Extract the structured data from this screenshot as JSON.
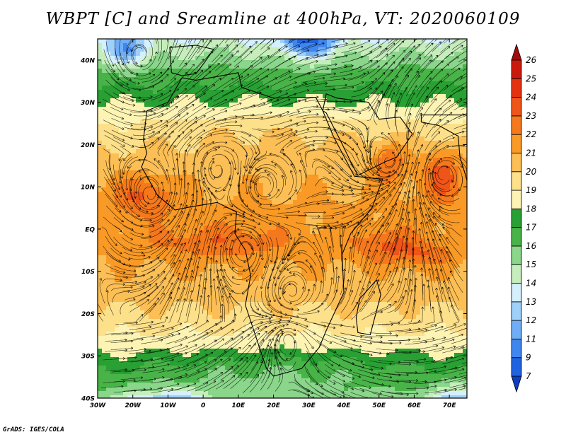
{
  "title": "WBPT [C] and Sreamline at 400hPa, VT: 2020060109",
  "credit": "GrADS: IGES/COLA",
  "map": {
    "lon_range": [
      -30,
      75
    ],
    "lat_range": [
      -40,
      45
    ],
    "x_ticks": [
      {
        "lon": -30,
        "label": "30W"
      },
      {
        "lon": -20,
        "label": "20W"
      },
      {
        "lon": -10,
        "label": "10W"
      },
      {
        "lon": 0,
        "label": "0"
      },
      {
        "lon": 10,
        "label": "10E"
      },
      {
        "lon": 20,
        "label": "20E"
      },
      {
        "lon": 30,
        "label": "30E"
      },
      {
        "lon": 40,
        "label": "40E"
      },
      {
        "lon": 50,
        "label": "50E"
      },
      {
        "lon": 60,
        "label": "60E"
      },
      {
        "lon": 70,
        "label": "70E"
      }
    ],
    "y_ticks": [
      {
        "lat": 40,
        "label": "40N"
      },
      {
        "lat": 30,
        "label": "30N"
      },
      {
        "lat": 20,
        "label": "20N"
      },
      {
        "lat": 10,
        "label": "10N"
      },
      {
        "lat": 0,
        "label": "EQ"
      },
      {
        "lat": -10,
        "label": "10S"
      },
      {
        "lat": -20,
        "label": "20S"
      },
      {
        "lat": -30,
        "label": "30S"
      },
      {
        "lat": -40,
        "label": "40S"
      }
    ],
    "vortices": [
      {
        "lon": 53,
        "lat": 16,
        "sign": 1
      },
      {
        "lon": 68,
        "lat": 13,
        "sign": -1
      },
      {
        "lon": 25,
        "lat": -15,
        "sign": 1
      },
      {
        "lon": 24,
        "lat": -26,
        "sign": -1
      },
      {
        "lon": -18,
        "lat": 41,
        "sign": 1
      },
      {
        "lon": -15,
        "lat": 8,
        "sign": 1
      },
      {
        "lon": 4,
        "lat": 14,
        "sign": -1
      },
      {
        "lon": 17,
        "lat": 10,
        "sign": 1
      },
      {
        "lon": 12,
        "lat": -5,
        "sign": -1
      }
    ]
  },
  "colorbar": {
    "colors": [
      "#0a3fc4",
      "#1f63e0",
      "#3f86ee",
      "#6faef6",
      "#9fd0fa",
      "#d4f0fc",
      "#c6edbc",
      "#8ad68a",
      "#48b448",
      "#29a033",
      "#fdf4b4",
      "#fde08a",
      "#fcbf55",
      "#f99a26",
      "#f5791c",
      "#ef5418",
      "#e33210",
      "#cb1a0c",
      "#a50a0a"
    ],
    "labels": [
      "7",
      "9",
      "11",
      "12",
      "13",
      "14",
      "15",
      "16",
      "17",
      "18",
      "19",
      "20",
      "21",
      "22",
      "23",
      "24",
      "25",
      "26"
    ]
  }
}
